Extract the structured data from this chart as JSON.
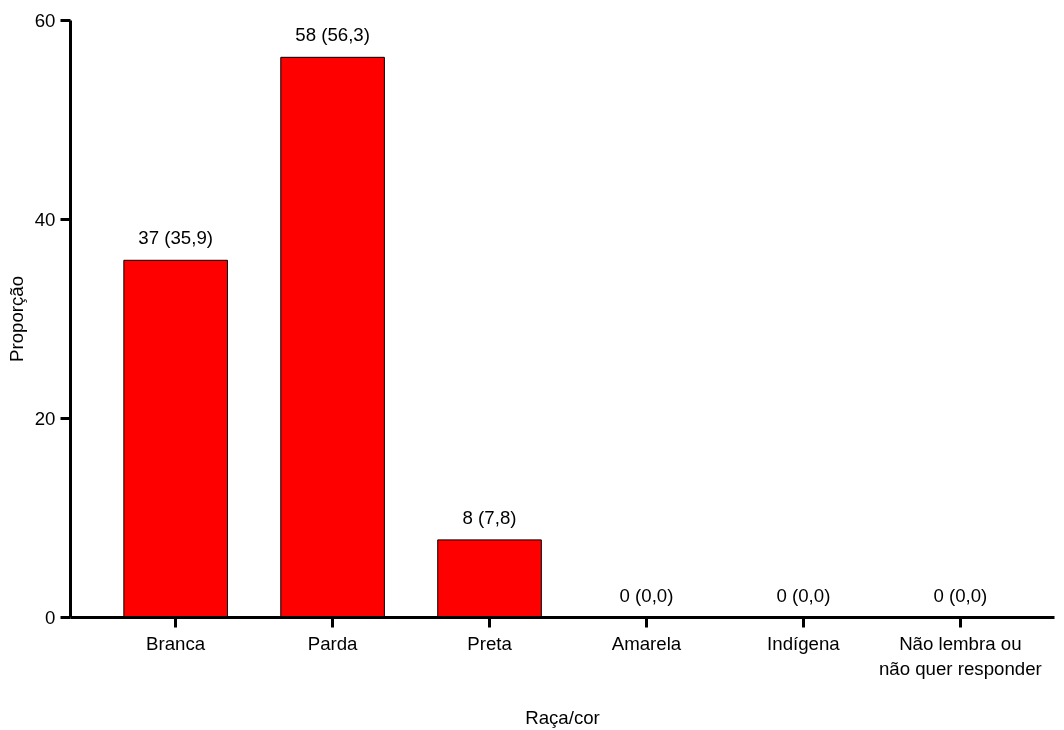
{
  "chart_data": {
    "type": "bar",
    "xlabel": "Raça/cor",
    "ylabel": "Proporção",
    "categories": [
      "Branca",
      "Parda",
      "Preta",
      "Amarela",
      "Indígena",
      "Não lembra ou\nnão quer responder"
    ],
    "values": [
      35.9,
      56.3,
      7.8,
      0,
      0,
      0
    ],
    "value_labels": [
      "37 (35,9)",
      "58 (56,3)",
      "8 (7,8)",
      "0 (0,0)",
      "0 (0,0)",
      "0 (0,0)"
    ],
    "color": "#ff0000",
    "ylim": [
      0,
      60
    ],
    "yticks": [
      0,
      20,
      40,
      60
    ],
    "grid": false
  }
}
